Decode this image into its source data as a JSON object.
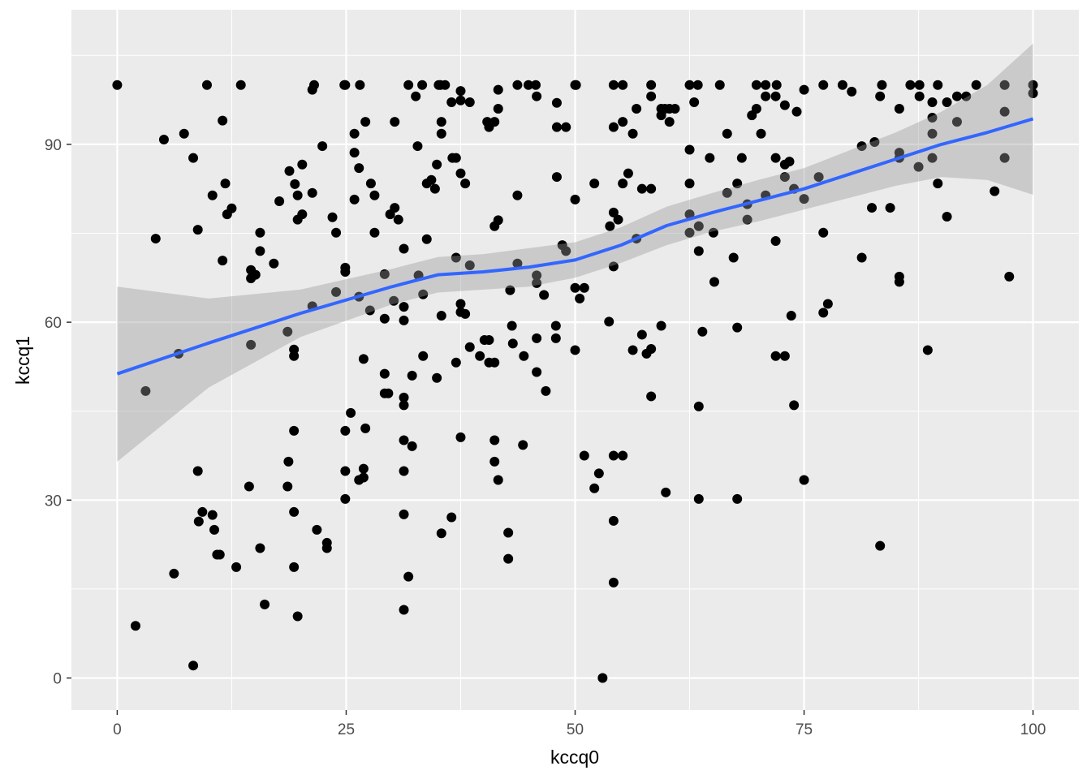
{
  "chart_data": {
    "type": "scatter",
    "x_label": "kccq0",
    "y_label": "kccq1",
    "xlim": [
      -5,
      105
    ],
    "ylim": [
      -5.4,
      112.7
    ],
    "xticks": [
      0,
      25,
      50,
      75,
      100
    ],
    "yticks": [
      0,
      30,
      60,
      90
    ],
    "minor_xticks": [
      12.5,
      37.5,
      62.5,
      87.5
    ],
    "minor_yticks": [
      15,
      45,
      75,
      105
    ],
    "grid": true,
    "panel_color": "#EBEBEB",
    "points": {
      "color": "#000000",
      "x": [
        0,
        9.8,
        13.5,
        21.5,
        24.8,
        24.9,
        26.5,
        31.8,
        33.3,
        35.1,
        35.3,
        35.8,
        43.7,
        44.9,
        45.7,
        50,
        50.1,
        54.2,
        55.2,
        58.3,
        62.5,
        63.4,
        65.8,
        69.8,
        70.8,
        72,
        77.1,
        79.2,
        83.5,
        86.6,
        87.6,
        89.6,
        93.8,
        96.9,
        100,
        5.1,
        7.3,
        8.3,
        4.2,
        8.8,
        10.4,
        11.5,
        11.8,
        12.5,
        12,
        11.5,
        14.6,
        15.1,
        14.6,
        15.6,
        15.6,
        17.1,
        17.7,
        18.8,
        19.4,
        19.7,
        19.7,
        20.2,
        20.2,
        21.3,
        21.3,
        22.4,
        23.5,
        23.9,
        23.9,
        24.9,
        24.9,
        25.9,
        25.9,
        26.4,
        25.9,
        27.1,
        27.7,
        28.1,
        28.1,
        26.4,
        27.6,
        29.2,
        29.2,
        30.3,
        29.8,
        30.2,
        30.3,
        30.7,
        31.3,
        31.3,
        31.3,
        32.6,
        32.8,
        32.9,
        33.4,
        33.8,
        33.8,
        34.3,
        34.7,
        34.9,
        35.4,
        35.4,
        36.5,
        36.6,
        37,
        37.5,
        37.5,
        37.5,
        38,
        38.5,
        37,
        37.5,
        37.5,
        38,
        38.5,
        35.4,
        40.4,
        40.6,
        41.2,
        41.6,
        41.6,
        41.2,
        41.6,
        43.7,
        43.7,
        42.9,
        45.8,
        45.8,
        45.8,
        46.6,
        48,
        48,
        49,
        48,
        48.6,
        49,
        50,
        50,
        50.5,
        51,
        52.1,
        53.8,
        54.2,
        54.2,
        54.7,
        55.2,
        55.2,
        55.8,
        56.3,
        56.7,
        56.7,
        57.3,
        58.3,
        58.3,
        59.4,
        59.4,
        59.8,
        60.3,
        60.3,
        60.9,
        62.5,
        62.5,
        62.5,
        62.5,
        63,
        63.5,
        63.5,
        64.7,
        65.1,
        66.6,
        66.6,
        67.3,
        67.7,
        68.2,
        68.8,
        68.8,
        69.3,
        69.8,
        70.3,
        70.8,
        70.8,
        71.9,
        71.9,
        71.9,
        72.9,
        72.9,
        72.9,
        73.4,
        73.9,
        74.2,
        75,
        75,
        76.6,
        77.1,
        80.2,
        81.3,
        82.7,
        82.4,
        83.3,
        84.4,
        85.4,
        85.4,
        85.4,
        87.5,
        87.6,
        89,
        89,
        89,
        89,
        89.6,
        90.6,
        91.7,
        91.7,
        92.7,
        95.8,
        96.9,
        96.9,
        97.4,
        100,
        90.6,
        3.1,
        6.7,
        6.2,
        2,
        8.3,
        8.8,
        9.3,
        8.9,
        10.4,
        10.6,
        10.9,
        11.2,
        13,
        14.4,
        14.6,
        15.6,
        16.1,
        18.6,
        18.7,
        18.6,
        19.3,
        19.3,
        19.3,
        19.3,
        19.3,
        19.7,
        21.3,
        21.8,
        22.9,
        22.9,
        24.9,
        24.9,
        24.9,
        25.5,
        26.9,
        27.1,
        26.9,
        26.9,
        26.4,
        29.2,
        29.2,
        29.6,
        31.3,
        31.3,
        31.3,
        31.3,
        31.3,
        31.3,
        31.8,
        32.2,
        32.2,
        33.4,
        34.9,
        35.4,
        36.5,
        37,
        37.5,
        38.5,
        39.6,
        40.1,
        40.6,
        40.6,
        41.2,
        41.2,
        41.2,
        41.6,
        43.1,
        43.2,
        42.7,
        42.7,
        44.3,
        44.4,
        45.8,
        45.8,
        46.8,
        47.9,
        47.9,
        50,
        51,
        52.1,
        52.6,
        53,
        53.7,
        54.2,
        54.2,
        55.2,
        54.2,
        54.2,
        56.3,
        57.3,
        57.8,
        58.3,
        58.3,
        59.4,
        59.9,
        63.5,
        63.5,
        63.9,
        65.2,
        67.7,
        67.7,
        71.9,
        72.9,
        73.6,
        73.9,
        75,
        77.1,
        77.6,
        81.3,
        83.3,
        85.4,
        85.4,
        88.5
      ],
      "y": [
        100,
        100,
        100,
        100,
        100,
        100,
        100,
        100,
        100,
        100,
        100,
        100,
        100,
        100,
        100,
        100,
        100,
        100,
        100,
        100,
        100,
        100,
        100,
        100,
        100,
        100,
        100,
        100,
        100,
        100,
        100,
        100,
        100,
        100,
        100,
        90.8,
        91.8,
        87.7,
        74.1,
        75.6,
        81.4,
        94,
        83.4,
        79.2,
        78.2,
        70.4,
        68.8,
        68,
        67.4,
        75.1,
        72,
        69.9,
        80.4,
        85.5,
        83.3,
        81.4,
        77.3,
        86.6,
        78.2,
        81.8,
        99.2,
        89.7,
        77.7,
        75.1,
        65.1,
        69.2,
        68.5,
        91.8,
        88.6,
        86,
        80.7,
        93.8,
        83.4,
        81.4,
        75.1,
        64.3,
        62,
        68.1,
        60.6,
        93.8,
        78.2,
        63.6,
        79.3,
        77.3,
        72.4,
        62.6,
        60.3,
        98.1,
        89.7,
        67.9,
        64.7,
        74,
        83.4,
        84,
        82.5,
        86.6,
        93.8,
        91.8,
        97.1,
        87.7,
        87.7,
        99,
        97.4,
        85.1,
        83.4,
        97.1,
        70.9,
        63.1,
        61.7,
        61.4,
        69.6,
        61.1,
        93.8,
        92.9,
        93.8,
        96,
        99.2,
        76.2,
        77.2,
        81.4,
        69.9,
        65.4,
        98.1,
        67.9,
        66.6,
        64.6,
        97,
        92.9,
        92.9,
        84.5,
        73,
        72,
        80.7,
        65.8,
        64,
        65.8,
        83.4,
        76.2,
        92.9,
        78.5,
        77.3,
        93.8,
        83.4,
        85.1,
        91.8,
        96,
        74.1,
        82.5,
        82.5,
        98.1,
        96,
        94.9,
        96,
        93.8,
        96,
        96,
        89.1,
        83.4,
        78.2,
        75.1,
        97.1,
        76.2,
        72,
        87.7,
        75.1,
        91.8,
        81.8,
        70.9,
        83.4,
        87.7,
        79.9,
        77.3,
        94.9,
        96,
        91.8,
        81.4,
        98.1,
        98.1,
        87.7,
        73.7,
        96.6,
        86.6,
        84.5,
        87.1,
        82.5,
        95.5,
        80.8,
        99.2,
        84.5,
        75.1,
        98.9,
        89.7,
        90.4,
        79.3,
        98.1,
        79.3,
        96,
        88.6,
        87.7,
        86.2,
        98.1,
        97.1,
        94.5,
        91.8,
        87.7,
        83.4,
        97.1,
        98.1,
        93.8,
        98.1,
        82.1,
        95.5,
        87.7,
        67.7,
        98.6,
        77.8,
        48.4,
        54.7,
        17.6,
        8.8,
        2.1,
        34.9,
        28,
        26.4,
        27.5,
        25,
        20.8,
        20.8,
        18.7,
        32.3,
        56.2,
        21.9,
        12.4,
        58.4,
        36.5,
        32.3,
        55.4,
        54.3,
        41.7,
        28,
        18.7,
        10.4,
        62.7,
        25,
        22.8,
        21.9,
        41.7,
        34.9,
        30.2,
        44.7,
        53.8,
        42.1,
        35.3,
        33.8,
        33.4,
        51.3,
        48,
        48,
        47.3,
        46,
        40.1,
        34.9,
        27.6,
        11.5,
        17.1,
        39.1,
        51,
        54.3,
        50.6,
        24.4,
        27.1,
        53.2,
        40.6,
        55.8,
        54.3,
        57,
        57,
        53.2,
        53.2,
        40.1,
        36.5,
        33.4,
        59.4,
        56.4,
        24.5,
        20.1,
        39.3,
        54.3,
        57.3,
        51.6,
        48.4,
        59.4,
        57.3,
        55.3,
        37.5,
        32,
        34.5,
        0,
        60.1,
        69.4,
        37.5,
        37.5,
        26.5,
        16.1,
        55.3,
        57.9,
        54.7,
        55.5,
        47.5,
        59.4,
        31.3,
        45.8,
        30.2,
        58.4,
        66.8,
        59.1,
        30.2,
        54.3,
        54.3,
        61.1,
        46,
        33.4,
        61.6,
        63.1,
        70.9,
        22.3,
        67.7,
        66.8,
        55.3
      ]
    },
    "smooth": {
      "color": "#3366FF",
      "band_color": "#999999",
      "x": [
        0,
        10,
        20,
        30,
        35,
        40,
        45,
        50,
        55,
        60,
        65,
        70,
        75,
        80,
        85,
        90,
        95,
        100
      ],
      "y": [
        51.3,
        56.5,
        61.5,
        66,
        68,
        68.5,
        69.3,
        70.5,
        73,
        76.3,
        78.5,
        80.5,
        82.5,
        85,
        87.5,
        90,
        92,
        94.3
      ],
      "lower": [
        36.5,
        49,
        57.5,
        63,
        65,
        65.5,
        66,
        67.5,
        70,
        73,
        75.3,
        77,
        79,
        81,
        83,
        84.5,
        84,
        81.5
      ],
      "upper": [
        66,
        64,
        65.5,
        69,
        71,
        71.5,
        72.5,
        73.5,
        76,
        79.5,
        81.8,
        84,
        86,
        89,
        92,
        95.5,
        100,
        107
      ]
    }
  }
}
